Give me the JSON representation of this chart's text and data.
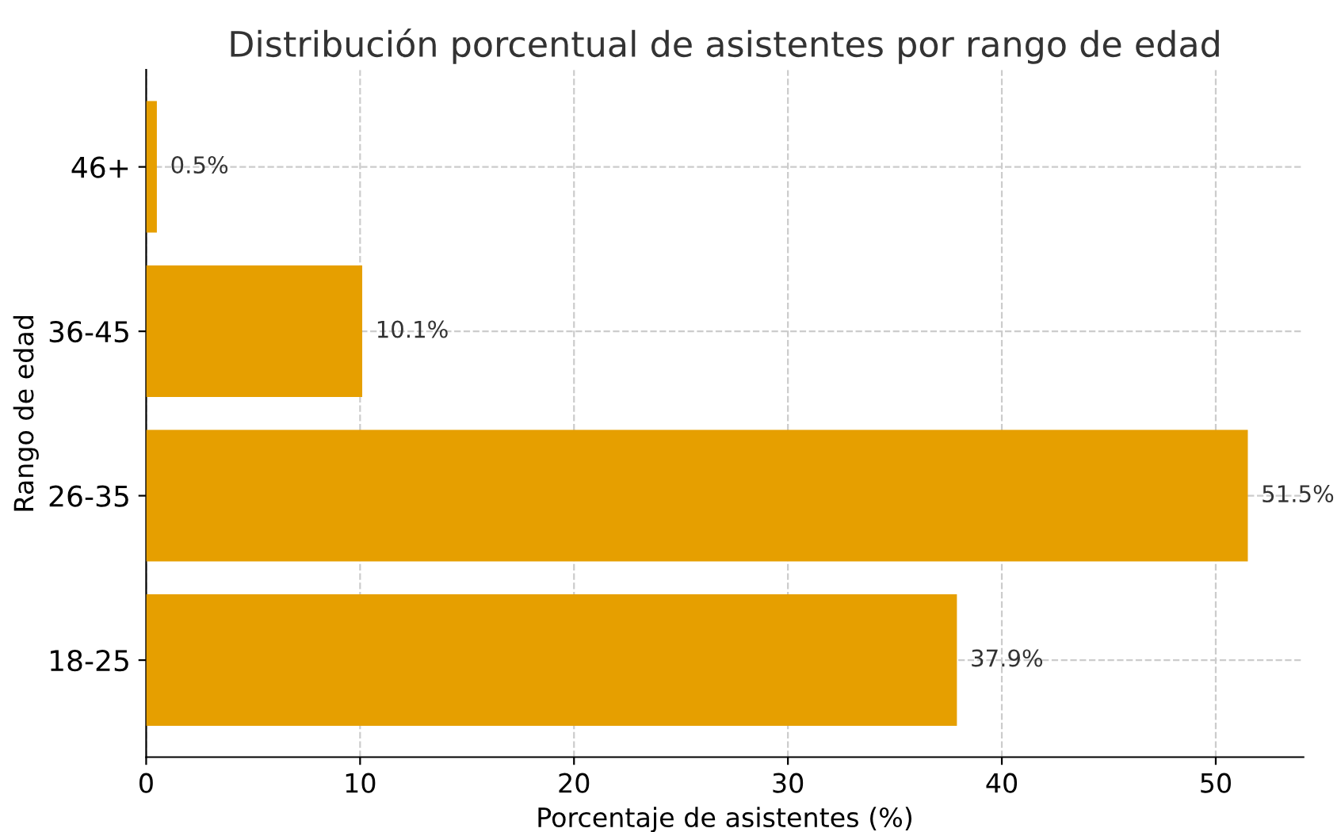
{
  "chart_data": {
    "type": "bar",
    "orientation": "horizontal",
    "title": "Distribución porcentual de asistentes por rango de edad",
    "xlabel": "Porcentaje de asistentes (%)",
    "ylabel": "Rango de edad",
    "categories": [
      "46+",
      "36-45",
      "26-35",
      "18-25"
    ],
    "values": [
      0.5,
      10.1,
      51.5,
      37.9
    ],
    "value_labels": [
      "0.5%",
      "10.1%",
      "51.5%",
      "37.9%"
    ],
    "color": "#e69f00",
    "xlim": [
      0,
      54.1
    ],
    "xticks": [
      0,
      10,
      20,
      30,
      40,
      50
    ],
    "grid": true
  }
}
